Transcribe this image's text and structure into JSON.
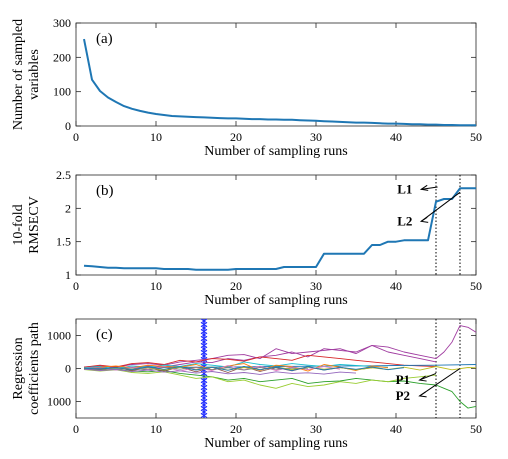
{
  "chart_data": [
    {
      "panel_label": "(a)",
      "type": "line",
      "xlabel": "Number of sampling runs",
      "ylabel": [
        "Number of sampled",
        "variables"
      ],
      "xlim": [
        0,
        50
      ],
      "ylim": [
        0,
        300
      ],
      "xticks": [
        0,
        10,
        20,
        30,
        40,
        50
      ],
      "yticks": [
        0,
        100,
        200,
        300
      ],
      "grid": false,
      "series": [
        {
          "color": "#1f77b4",
          "x": [
            1,
            2,
            3,
            4,
            5,
            6,
            7,
            8,
            9,
            10,
            11,
            12,
            13,
            14,
            15,
            16,
            17,
            18,
            19,
            20,
            21,
            22,
            23,
            24,
            25,
            26,
            27,
            28,
            29,
            30,
            31,
            32,
            33,
            34,
            35,
            36,
            37,
            38,
            39,
            40,
            41,
            42,
            43,
            44,
            45,
            46,
            47,
            48,
            49,
            50
          ],
          "y": [
            253,
            135,
            102,
            83,
            70,
            58,
            50,
            44,
            39,
            35,
            32,
            29,
            28,
            27,
            26,
            25,
            24,
            23,
            22,
            22,
            21,
            20,
            20,
            19,
            19,
            18,
            18,
            17,
            16,
            15,
            14,
            13,
            12,
            11,
            10,
            10,
            9,
            8,
            7,
            7,
            6,
            5,
            5,
            4,
            4,
            3,
            3,
            2,
            2,
            2
          ]
        }
      ]
    },
    {
      "panel_label": "(b)",
      "type": "line",
      "xlabel": "Number of sampling runs",
      "ylabel": [
        "10-fold",
        "RMSECV"
      ],
      "xlim": [
        0,
        50
      ],
      "ylim": [
        1,
        2.5
      ],
      "xticks": [
        0,
        10,
        20,
        30,
        40,
        50
      ],
      "yticks": [
        1,
        1.5,
        2,
        2.5
      ],
      "ytick_labels": [
        "1",
        "1.5",
        "2",
        "2.5"
      ],
      "grid": false,
      "series": [
        {
          "color": "#1f77b4",
          "x": [
            1,
            2,
            3,
            4,
            5,
            6,
            7,
            8,
            9,
            10,
            11,
            12,
            13,
            14,
            15,
            16,
            17,
            18,
            19,
            20,
            21,
            22,
            23,
            24,
            25,
            26,
            27,
            28,
            29,
            30,
            31,
            32,
            33,
            34,
            35,
            36,
            37,
            38,
            39,
            40,
            41,
            42,
            43,
            44,
            45,
            46,
            47,
            48,
            49,
            50
          ],
          "y": [
            1.14,
            1.13,
            1.12,
            1.11,
            1.11,
            1.1,
            1.1,
            1.1,
            1.1,
            1.1,
            1.09,
            1.09,
            1.09,
            1.09,
            1.08,
            1.08,
            1.08,
            1.08,
            1.08,
            1.09,
            1.09,
            1.09,
            1.09,
            1.09,
            1.09,
            1.12,
            1.12,
            1.12,
            1.12,
            1.12,
            1.32,
            1.32,
            1.32,
            1.32,
            1.32,
            1.32,
            1.45,
            1.45,
            1.5,
            1.5,
            1.52,
            1.52,
            1.52,
            1.52,
            2.1,
            2.14,
            2.14,
            2.3,
            2.3,
            2.3
          ]
        }
      ],
      "vlines": [
        45,
        48
      ],
      "annotations": [
        {
          "text": "L1",
          "x": 45.4,
          "y": 2.3
        },
        {
          "text": "L2",
          "x": 45.4,
          "y": 1.82
        }
      ]
    },
    {
      "panel_label": "(c)",
      "type": "line",
      "xlabel": "Number of sampling runs",
      "ylabel": [
        "Regression",
        "coefficients path"
      ],
      "xlim": [
        0,
        50
      ],
      "ylim": [
        -1500,
        1500
      ],
      "xticks": [
        0,
        10,
        20,
        30,
        40,
        50
      ],
      "yticks": [
        -1000,
        0,
        1000
      ],
      "ytick_labels": [
        "1000",
        "0",
        "1000"
      ],
      "grid": false,
      "vlines": [
        45,
        48
      ],
      "marker_line": {
        "x": 16,
        "color": "#1e2bff"
      },
      "annotations": [
        {
          "text": "P1",
          "x": 45.2,
          "y": -320
        },
        {
          "text": "P2",
          "x": 45.2,
          "y": -800
        }
      ],
      "series": [
        {
          "color": "#a03ca0",
          "x": [
            1,
            3,
            5,
            7,
            9,
            11,
            13,
            15,
            17,
            19,
            21,
            23,
            25,
            27,
            29,
            31,
            33,
            35,
            37,
            39,
            41,
            43,
            45,
            46,
            47,
            48,
            49,
            50
          ],
          "y": [
            50,
            80,
            40,
            120,
            150,
            100,
            200,
            250,
            300,
            400,
            420,
            300,
            600,
            450,
            500,
            550,
            600,
            450,
            700,
            650,
            500,
            400,
            300,
            500,
            800,
            1300,
            1250,
            1100
          ]
        },
        {
          "color": "#a03ca0",
          "x": [
            1,
            3,
            5,
            7,
            9,
            11,
            13,
            15,
            17,
            19,
            21,
            23,
            25,
            27,
            29,
            31,
            33,
            35,
            37,
            39,
            41,
            43,
            45
          ],
          "y": [
            30,
            -20,
            60,
            30,
            80,
            50,
            120,
            200,
            180,
            300,
            250,
            350,
            400,
            500,
            350,
            600,
            550,
            500,
            700,
            500,
            400,
            300,
            200
          ]
        },
        {
          "color": "#d62728",
          "x": [
            1,
            3,
            5,
            7,
            9,
            11,
            13,
            15,
            17,
            19,
            21,
            23,
            25,
            27,
            29,
            31,
            33,
            35,
            37,
            39,
            41,
            43,
            45
          ],
          "y": [
            40,
            100,
            50,
            150,
            180,
            120,
            250,
            200,
            300,
            280,
            220,
            350,
            300,
            250,
            400,
            350,
            300,
            250,
            200,
            150,
            100,
            80,
            60
          ]
        },
        {
          "color": "#2ca02c",
          "x": [
            1,
            3,
            5,
            7,
            9,
            11,
            13,
            15,
            17,
            19,
            21,
            23,
            25,
            27,
            29,
            31,
            33,
            35,
            37,
            39,
            41,
            43,
            45,
            46,
            47,
            48,
            49,
            50
          ],
          "y": [
            -20,
            -50,
            -30,
            -80,
            -100,
            -60,
            -150,
            -200,
            -250,
            -350,
            -300,
            -400,
            -350,
            -300,
            -450,
            -400,
            -380,
            -300,
            -350,
            -400,
            -380,
            -450,
            -500,
            -600,
            -700,
            -1000,
            -1200,
            -1150
          ]
        },
        {
          "color": "#9acd32",
          "x": [
            1,
            3,
            5,
            7,
            9,
            11,
            13,
            15,
            17,
            19,
            21,
            23,
            25,
            27,
            29,
            31,
            33,
            35,
            37,
            39,
            41,
            43,
            45
          ],
          "y": [
            -30,
            -80,
            -40,
            -120,
            -150,
            -100,
            -200,
            -300,
            -250,
            -400,
            -350,
            -500,
            -600,
            -450,
            -550,
            -500,
            -400,
            -450,
            -350,
            -400,
            -300,
            -250,
            -200
          ]
        },
        {
          "color": "#1f77b4",
          "x": [
            1,
            5,
            10,
            15,
            20,
            25,
            30,
            35,
            40,
            45,
            50
          ],
          "y": [
            10,
            20,
            30,
            40,
            50,
            60,
            70,
            80,
            90,
            100,
            120
          ]
        },
        {
          "color": "#17becf",
          "x": [
            1,
            3,
            5,
            7,
            9,
            11,
            13,
            15,
            17,
            19,
            21,
            23,
            25,
            27,
            29,
            31,
            33,
            35,
            37,
            39
          ],
          "y": [
            20,
            60,
            -10,
            80,
            50,
            100,
            60,
            150,
            100,
            50,
            200,
            120,
            80,
            150,
            100,
            60,
            120,
            90,
            60,
            40
          ]
        },
        {
          "color": "#ff7f0e",
          "x": [
            1,
            3,
            5,
            7,
            9,
            11,
            13,
            15,
            17,
            19,
            21,
            23,
            25,
            27,
            29,
            31,
            33,
            35,
            37,
            39
          ],
          "y": [
            -10,
            40,
            80,
            20,
            100,
            60,
            40,
            120,
            -40,
            80,
            150,
            -60,
            100,
            60,
            -80,
            120,
            40,
            -60,
            80,
            20
          ]
        },
        {
          "color": "#8c564b",
          "x": [
            1,
            3,
            5,
            7,
            9,
            11,
            13,
            15,
            17,
            19,
            21,
            23,
            25,
            27,
            29,
            31,
            33,
            35,
            37
          ],
          "y": [
            0,
            -40,
            30,
            -60,
            20,
            -80,
            50,
            -100,
            40,
            -120,
            60,
            -90,
            30,
            -70,
            50,
            -50,
            30,
            -40,
            20
          ]
        },
        {
          "color": "#e377c2",
          "x": [
            1,
            3,
            5,
            7,
            9,
            11,
            13,
            15,
            17,
            19,
            21,
            23,
            25,
            27,
            29,
            31,
            33
          ],
          "y": [
            0,
            30,
            -50,
            40,
            -30,
            60,
            -80,
            30,
            -60,
            90,
            -40,
            70,
            -60,
            50,
            -30,
            60,
            -20
          ]
        },
        {
          "color": "#7f7f7f",
          "x": [
            1,
            3,
            5,
            7,
            9,
            11,
            13,
            15,
            17,
            19,
            21,
            23,
            25,
            27,
            29
          ],
          "y": [
            -5,
            20,
            -30,
            15,
            -45,
            35,
            -20,
            40,
            -35,
            25,
            -50,
            30,
            -20,
            15,
            -10
          ]
        },
        {
          "color": "#bcbd22",
          "x": [
            1,
            3,
            5,
            7,
            9,
            11,
            13,
            15,
            17,
            19,
            21,
            23,
            25,
            27,
            29,
            31,
            33,
            35,
            37,
            39,
            41,
            43,
            45,
            47,
            49,
            50
          ],
          "y": [
            10,
            -20,
            15,
            -30,
            25,
            -40,
            35,
            -30,
            40,
            -50,
            30,
            -40,
            50,
            -30,
            40,
            -20,
            30,
            -40,
            20,
            -30,
            40,
            -50,
            60,
            -40,
            30,
            20
          ]
        },
        {
          "color": "#9467bd",
          "x": [
            1,
            3,
            5,
            7,
            9,
            11,
            13,
            15,
            17,
            19,
            21,
            23,
            25,
            27,
            29,
            31,
            33,
            35
          ],
          "y": [
            -20,
            -60,
            -30,
            -90,
            -50,
            -110,
            -70,
            -140,
            -90,
            -160,
            -120,
            -180,
            -100,
            -150,
            -130,
            -170,
            -110,
            -140
          ]
        },
        {
          "color": "#1f77b4",
          "x": [
            1,
            3,
            5,
            7,
            9,
            11,
            13,
            15,
            17,
            19,
            21,
            23,
            25,
            27,
            29,
            31,
            33,
            35,
            37,
            39,
            41
          ],
          "y": [
            5,
            -15,
            25,
            -35,
            45,
            -25,
            55,
            -45,
            35,
            -55,
            65,
            -35,
            45,
            -65,
            55,
            -45,
            35,
            -25,
            45,
            -35,
            25
          ]
        }
      ]
    }
  ]
}
